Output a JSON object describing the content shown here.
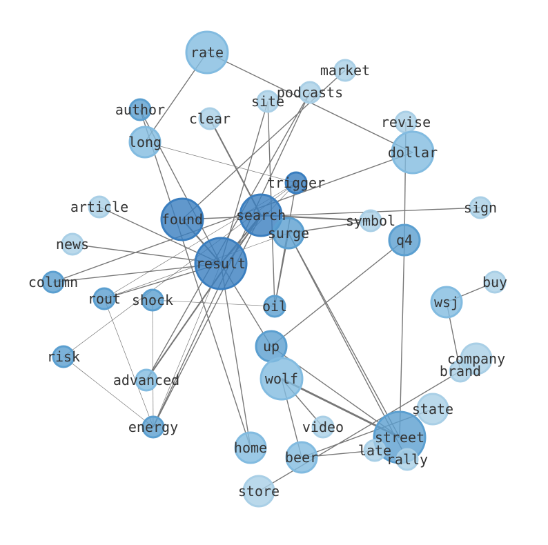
{
  "graph": {
    "type": "network",
    "node_colors": {
      "dark": "#3a7ebf",
      "medium": "#5b9fd0",
      "light": "#82bbe0",
      "pale": "#a9cfe6"
    },
    "edge_color": "#777777",
    "nodes": [
      {
        "id": "rate",
        "shade": "light",
        "size": 3
      },
      {
        "id": "market",
        "shade": "pale",
        "size": 1
      },
      {
        "id": "podcasts",
        "shade": "pale",
        "size": 1
      },
      {
        "id": "site",
        "shade": "pale",
        "size": 1
      },
      {
        "id": "author",
        "shade": "medium",
        "size": 1
      },
      {
        "id": "clear",
        "shade": "pale",
        "size": 1
      },
      {
        "id": "revise",
        "shade": "pale",
        "size": 1
      },
      {
        "id": "long",
        "shade": "light",
        "size": 2
      },
      {
        "id": "dollar",
        "shade": "light",
        "size": 3
      },
      {
        "id": "trigger",
        "shade": "dark",
        "size": 1
      },
      {
        "id": "article",
        "shade": "pale",
        "size": 1
      },
      {
        "id": "sign",
        "shade": "pale",
        "size": 1
      },
      {
        "id": "found",
        "shade": "dark",
        "size": 3
      },
      {
        "id": "search",
        "shade": "dark",
        "size": 3
      },
      {
        "id": "symbol",
        "shade": "pale",
        "size": 1
      },
      {
        "id": "surge",
        "shade": "medium",
        "size": 2
      },
      {
        "id": "q4",
        "shade": "medium",
        "size": 2
      },
      {
        "id": "news",
        "shade": "pale",
        "size": 1
      },
      {
        "id": "result",
        "shade": "dark",
        "size": 4
      },
      {
        "id": "column",
        "shade": "medium",
        "size": 1
      },
      {
        "id": "buy",
        "shade": "pale",
        "size": 1
      },
      {
        "id": "rout",
        "shade": "medium",
        "size": 1
      },
      {
        "id": "shock",
        "shade": "medium",
        "size": 1
      },
      {
        "id": "wsj",
        "shade": "light",
        "size": 2
      },
      {
        "id": "oil",
        "shade": "medium",
        "size": 1
      },
      {
        "id": "up",
        "shade": "medium",
        "size": 2
      },
      {
        "id": "risk",
        "shade": "medium",
        "size": 1
      },
      {
        "id": "company",
        "shade": "pale",
        "size": 2
      },
      {
        "id": "brand",
        "shade": "pale",
        "size": 1
      },
      {
        "id": "advanced",
        "shade": "light",
        "size": 1
      },
      {
        "id": "wolf",
        "shade": "light",
        "size": 3
      },
      {
        "id": "state",
        "shade": "pale",
        "size": 2
      },
      {
        "id": "energy",
        "shade": "medium",
        "size": 1
      },
      {
        "id": "video",
        "shade": "pale",
        "size": 1
      },
      {
        "id": "street",
        "shade": "medium",
        "size": 4
      },
      {
        "id": "home",
        "shade": "light",
        "size": 2
      },
      {
        "id": "late",
        "shade": "pale",
        "size": 1
      },
      {
        "id": "rally",
        "shade": "pale",
        "size": 1
      },
      {
        "id": "beer",
        "shade": "light",
        "size": 2
      },
      {
        "id": "store",
        "shade": "pale",
        "size": 2
      }
    ],
    "edges": [
      [
        "rate",
        "long",
        2
      ],
      [
        "rate",
        "dollar",
        2
      ],
      [
        "market",
        "found",
        2
      ],
      [
        "podcasts",
        "advanced",
        2
      ],
      [
        "podcasts",
        "energy",
        2
      ],
      [
        "site",
        "oil",
        2
      ],
      [
        "site",
        "result",
        2
      ],
      [
        "author",
        "home",
        2
      ],
      [
        "author",
        "result",
        2
      ],
      [
        "clear",
        "search",
        3
      ],
      [
        "long",
        "trigger",
        1
      ],
      [
        "dollar",
        "column",
        2
      ],
      [
        "trigger",
        "result",
        1
      ],
      [
        "trigger",
        "rout",
        1
      ],
      [
        "trigger",
        "risk",
        1
      ],
      [
        "trigger",
        "oil",
        2
      ],
      [
        "article",
        "result",
        2
      ],
      [
        "sign",
        "found",
        2
      ],
      [
        "search",
        "symbol",
        3
      ],
      [
        "search",
        "result",
        3
      ],
      [
        "search",
        "energy",
        2
      ],
      [
        "search",
        "advanced",
        3
      ],
      [
        "surge",
        "street",
        2
      ],
      [
        "surge",
        "oil",
        2
      ],
      [
        "surge",
        "symbol",
        2
      ],
      [
        "surge",
        "rally",
        2
      ],
      [
        "surge",
        "rout",
        1
      ],
      [
        "q4",
        "up",
        2
      ],
      [
        "q4",
        "street",
        2
      ],
      [
        "revise",
        "q4",
        2
      ],
      [
        "news",
        "result",
        2
      ],
      [
        "result",
        "column",
        2
      ],
      [
        "result",
        "rout",
        2
      ],
      [
        "result",
        "up",
        2
      ],
      [
        "result",
        "home",
        2
      ],
      [
        "found",
        "result",
        3
      ],
      [
        "shock",
        "oil",
        1
      ],
      [
        "shock",
        "energy",
        1
      ],
      [
        "rout",
        "energy",
        1
      ],
      [
        "risk",
        "energy",
        1
      ],
      [
        "wsj",
        "buy",
        2
      ],
      [
        "wsj",
        "brand",
        2
      ],
      [
        "up",
        "street",
        2
      ],
      [
        "wolf",
        "street",
        4
      ],
      [
        "wolf",
        "beer",
        2
      ],
      [
        "wolf",
        "video",
        2
      ],
      [
        "beer",
        "state",
        2
      ],
      [
        "beer",
        "late",
        2
      ],
      [
        "store",
        "brand",
        2
      ],
      [
        "result",
        "energy",
        1
      ]
    ]
  }
}
